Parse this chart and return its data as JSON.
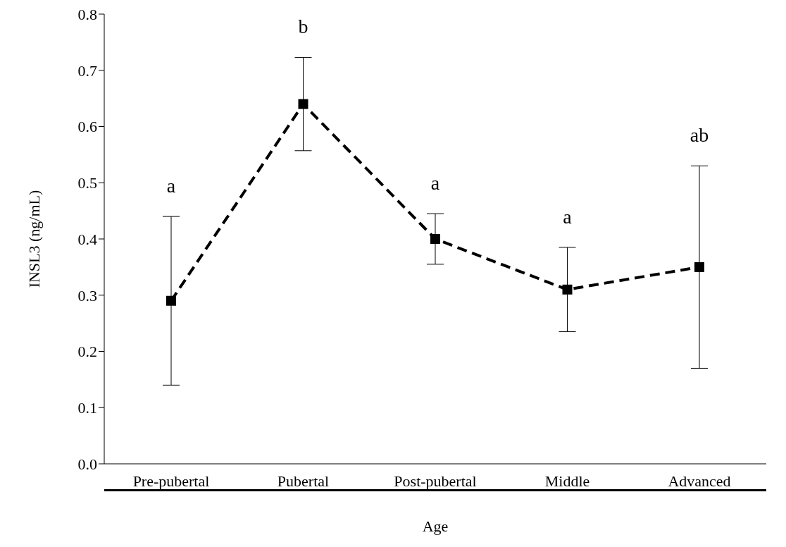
{
  "chart_data": {
    "type": "line",
    "xlabel": "Age",
    "ylabel": "INSL3 (ng/mL)",
    "categories": [
      "Pre-pubertal",
      "Pubertal",
      "Post-pubertal",
      "Middle",
      "Advanced"
    ],
    "values": [
      0.29,
      0.64,
      0.4,
      0.31,
      0.35
    ],
    "errors": [
      0.15,
      0.083,
      0.045,
      0.075,
      0.18
    ],
    "color": "#000000",
    "marker": "square",
    "line_style": "dashed",
    "ylim": [
      0,
      0.8
    ],
    "yticks": [
      {
        "value": 0,
        "label": "0.0"
      },
      0.1,
      0.2,
      0.3,
      0.4,
      0.5,
      0.6,
      0.7,
      0.8
    ],
    "grid": false,
    "legend": false,
    "annotations": [
      "a",
      "b",
      "a",
      "a",
      "ab"
    ]
  }
}
